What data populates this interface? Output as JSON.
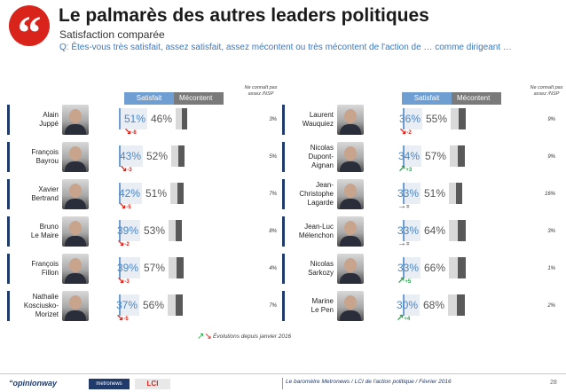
{
  "header": {
    "quote_glyph": "“",
    "title": "Le palmarès des autres leaders politiques",
    "subtitle": "Satisfaction comparée",
    "question": "Q: Êtes-vous très satisfait, assez satisfait, assez mécontent ou très mécontent de l'action de … comme dirigeant …"
  },
  "column_headers": {
    "satisfait": "Satisfait",
    "mecontent": "Mécontent",
    "nsp": "Ne connaît pas assez /NSP"
  },
  "colors": {
    "satisfait": "#6f9fd2",
    "mecontent_dark": "#595959",
    "down": "#d9241c",
    "up": "#2aa04a",
    "accent": "#1f3a6b"
  },
  "chart_data": {
    "type": "bar",
    "title": "Le palmarès des autres leaders politiques",
    "subtitle": "Satisfaction comparée",
    "series": [
      {
        "name": "Satisfait",
        "values": [
          51,
          43,
          42,
          39,
          39,
          37,
          36,
          34,
          33,
          33,
          33,
          30
        ]
      },
      {
        "name": "Mécontent",
        "values": [
          46,
          52,
          51,
          53,
          57,
          56,
          55,
          57,
          51,
          64,
          66,
          68
        ]
      },
      {
        "name": "Ne connaît pas assez /NSP",
        "values": [
          3,
          5,
          7,
          8,
          4,
          7,
          9,
          9,
          16,
          3,
          1,
          2
        ]
      }
    ],
    "categories": [
      "Alain Juppé",
      "François Bayrou",
      "Xavier Bertrand",
      "Bruno Le Maire",
      "François Fillon",
      "Nathalie Kosciusko-Morizet",
      "Laurent Wauquiez",
      "Nicolas Dupont-Aignan",
      "Jean-Christophe Lagarde",
      "Jean-Luc Mélenchon",
      "Nicolas Sarkozy",
      "Marine Le Pen"
    ]
  },
  "leaders": [
    {
      "name_lines": [
        "Alain",
        "Juppé"
      ],
      "satisfait": "51%",
      "mecontent": "46%",
      "nsp": "3%",
      "delta": "-8",
      "trend": "down",
      "sat_value": 51,
      "mec_value": 46,
      "nsp_value": 3
    },
    {
      "name_lines": [
        "François",
        "Bayrou"
      ],
      "satisfait": "43%",
      "mecontent": "52%",
      "nsp": "5%",
      "delta": "-3",
      "trend": "down",
      "sat_value": 43,
      "mec_value": 52,
      "nsp_value": 5
    },
    {
      "name_lines": [
        "Xavier",
        "Bertrand"
      ],
      "satisfait": "42%",
      "mecontent": "51%",
      "nsp": "7%",
      "delta": "-5",
      "trend": "down",
      "sat_value": 42,
      "mec_value": 51,
      "nsp_value": 7
    },
    {
      "name_lines": [
        "Bruno",
        "Le Maire"
      ],
      "satisfait": "39%",
      "mecontent": "53%",
      "nsp": "8%",
      "delta": "-2",
      "trend": "down",
      "sat_value": 39,
      "mec_value": 53,
      "nsp_value": 8
    },
    {
      "name_lines": [
        "François",
        "Fillon"
      ],
      "satisfait": "39%",
      "mecontent": "57%",
      "nsp": "4%",
      "delta": "-3",
      "trend": "down",
      "sat_value": 39,
      "mec_value": 57,
      "nsp_value": 4
    },
    {
      "name_lines": [
        "Nathalie",
        "Kosciusko-",
        "Morizet"
      ],
      "satisfait": "37%",
      "mecontent": "56%",
      "nsp": "7%",
      "delta": "-5",
      "trend": "down",
      "sat_value": 37,
      "mec_value": 56,
      "nsp_value": 7
    },
    {
      "name_lines": [
        "Laurent",
        "Wauquiez"
      ],
      "satisfait": "36%",
      "mecontent": "55%",
      "nsp": "9%",
      "delta": "-2",
      "trend": "down",
      "sat_value": 36,
      "mec_value": 55,
      "nsp_value": 9
    },
    {
      "name_lines": [
        "Nicolas",
        "Dupont-",
        "Aignan"
      ],
      "satisfait": "34%",
      "mecontent": "57%",
      "nsp": "9%",
      "delta": "+3",
      "trend": "up",
      "sat_value": 34,
      "mec_value": 57,
      "nsp_value": 9
    },
    {
      "name_lines": [
        "Jean-",
        "Christophe",
        "Lagarde"
      ],
      "satisfait": "33%",
      "mecontent": "51%",
      "nsp": "16%",
      "delta": "=",
      "trend": "flat",
      "sat_value": 33,
      "mec_value": 51,
      "nsp_value": 16
    },
    {
      "name_lines": [
        "Jean-Luc",
        "Mélenchon"
      ],
      "satisfait": "33%",
      "mecontent": "64%",
      "nsp": "3%",
      "delta": "=",
      "trend": "flat",
      "sat_value": 33,
      "mec_value": 64,
      "nsp_value": 3
    },
    {
      "name_lines": [
        "Nicolas",
        "Sarkozy"
      ],
      "satisfait": "33%",
      "mecontent": "66%",
      "nsp": "1%",
      "delta": "+5",
      "trend": "up",
      "sat_value": 33,
      "mec_value": 66,
      "nsp_value": 1
    },
    {
      "name_lines": [
        "Marine",
        "Le Pen"
      ],
      "satisfait": "30%",
      "mecontent": "68%",
      "nsp": "2%",
      "delta": "+4",
      "trend": "up",
      "sat_value": 30,
      "mec_value": 68,
      "nsp_value": 2
    }
  ],
  "legend_note": "Évolutions depuis janvier 2016",
  "footer": {
    "logo_opinionway": "“opinionway",
    "logo_metronews": "metronews",
    "logo_lci": "LCI",
    "source": "Le baromètre Metronews / LCI de l'action politique / Février 2016",
    "page": "28"
  }
}
